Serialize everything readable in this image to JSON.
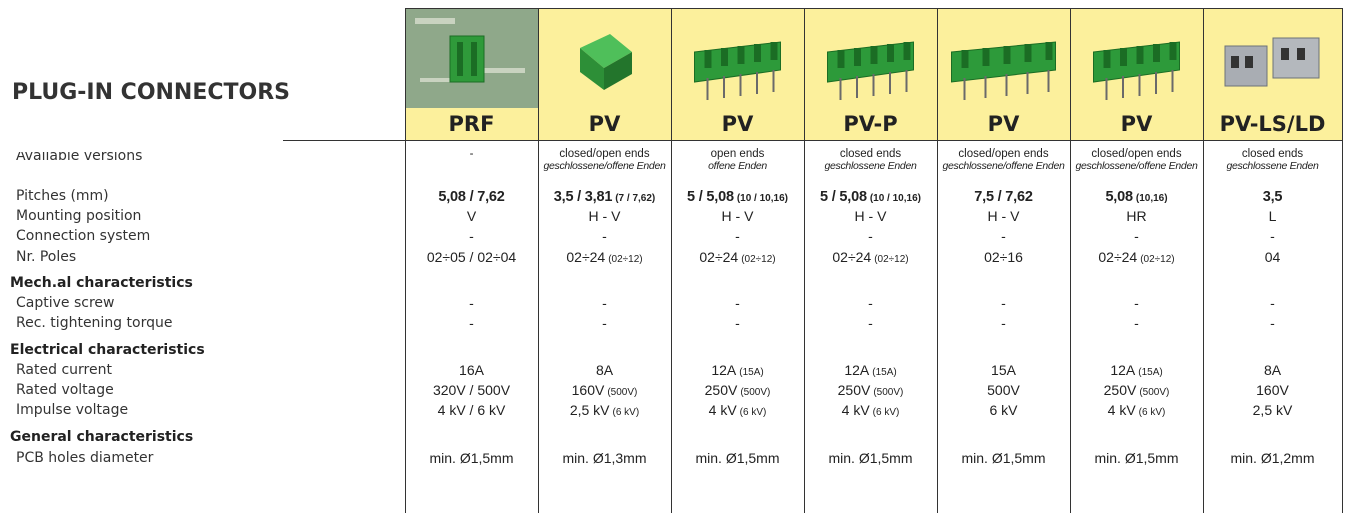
{
  "title": "PLUG-IN CONNECTORS",
  "columns": [
    {
      "name": "PRF"
    },
    {
      "name": "PV"
    },
    {
      "name": "PV"
    },
    {
      "name": "PV-P"
    },
    {
      "name": "PV"
    },
    {
      "name": "PV"
    },
    {
      "name": "PV-LS/LD"
    }
  ],
  "rows": [
    {
      "label": "Available versions",
      "cells": [
        {
          "en": "-"
        },
        {
          "en": "closed/open ends",
          "de": "geschlossene/offene Enden"
        },
        {
          "en": "open ends",
          "de": "offene Enden"
        },
        {
          "en": "closed ends",
          "de": "geschlossene Enden"
        },
        {
          "en": "closed/open ends",
          "de": "geschlossene/offene Enden"
        },
        {
          "en": "closed/open ends",
          "de": "geschlossene/offene Enden"
        },
        {
          "en": "closed ends",
          "de": "geschlossene Enden"
        }
      ]
    },
    {
      "label": "Pitches (mm)",
      "cells": [
        "5,08 / 7,62",
        {
          "text": "3,5 / 3,81",
          "note": "(7 / 7,62)"
        },
        {
          "text": "5 / 5,08",
          "note": "(10 / 10,16)"
        },
        {
          "text": "5 / 5,08",
          "note": "(10 / 10,16)"
        },
        "7,5 / 7,62",
        {
          "text": "5,08",
          "note": "(10,16)"
        },
        "3,5"
      ]
    },
    {
      "label": "Mounting position",
      "cells": [
        "V",
        "H - V",
        "H - V",
        "H - V",
        "H - V",
        "HR",
        "L"
      ]
    },
    {
      "label": "Connection system",
      "cells": [
        "-",
        "-",
        "-",
        "-",
        "-",
        "-",
        "-"
      ]
    },
    {
      "label": "Nr. Poles",
      "cells": [
        "02÷05 / 02÷04",
        {
          "text": "02÷24",
          "note": "(02÷12)"
        },
        {
          "text": "02÷24",
          "note": "(02÷12)"
        },
        {
          "text": "02÷24",
          "note": "(02÷12)"
        },
        "02÷16",
        {
          "text": "02÷24",
          "note": "(02÷12)"
        },
        "04"
      ]
    },
    {
      "heading": "Mech.al characteristics"
    },
    {
      "label": "Captive screw",
      "cells": [
        "-",
        "-",
        "-",
        "-",
        "-",
        "-",
        "-"
      ]
    },
    {
      "label": "Rec. tightening torque",
      "cells": [
        "-",
        "-",
        "-",
        "-",
        "-",
        "-",
        "-"
      ]
    },
    {
      "heading": "Electrical characteristics"
    },
    {
      "label": "Rated current",
      "cells": [
        "16A",
        "8A",
        {
          "text": "12A",
          "note": "(15A)"
        },
        {
          "text": "12A",
          "note": "(15A)"
        },
        "15A",
        {
          "text": "12A",
          "note": "(15A)"
        },
        "8A"
      ]
    },
    {
      "label": "Rated voltage",
      "cells": [
        "320V / 500V",
        {
          "text": "160V",
          "note": "(500V)"
        },
        {
          "text": "250V",
          "note": "(500V)"
        },
        {
          "text": "250V",
          "note": "(500V)"
        },
        "500V",
        {
          "text": "250V",
          "note": "(500V)"
        },
        "160V"
      ]
    },
    {
      "label": "Impulse voltage",
      "cells": [
        "4 kV / 6 kV",
        {
          "text": "2,5 kV",
          "note": "(6 kV)"
        },
        {
          "text": "4 kV",
          "note": "(6 kV)"
        },
        {
          "text": "4 kV",
          "note": "(6 kV)"
        },
        "6 kV",
        {
          "text": "4 kV",
          "note": "(6 kV)"
        },
        "2,5 kV"
      ]
    },
    {
      "heading": "General characteristics"
    },
    {
      "label": "PCB holes diameter",
      "cells": [
        "min. Ø1,5mm",
        "min. Ø1,3mm",
        "min. Ø1,5mm",
        "min. Ø1,5mm",
        "min. Ø1,5mm",
        "min. Ø1,5mm",
        "min. Ø1,2mm"
      ]
    }
  ]
}
